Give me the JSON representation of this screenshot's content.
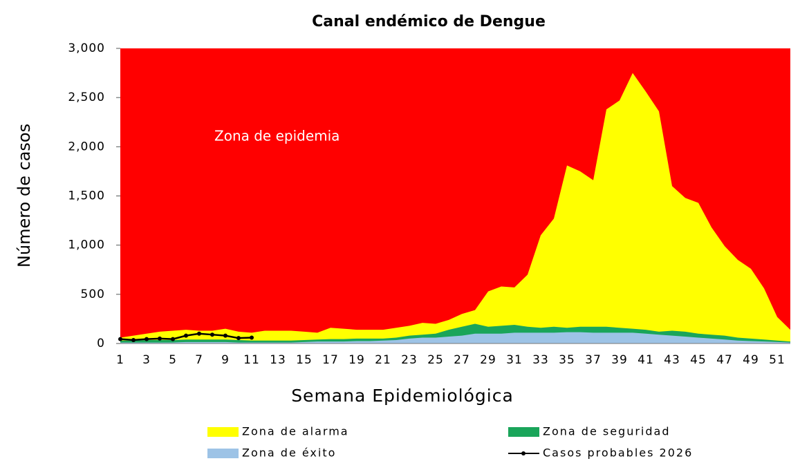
{
  "chart_data": {
    "type": "area",
    "title": "Canal endémico de Dengue",
    "x_label": "Semana Epidemiológica",
    "y_label": "Número de casos",
    "annotation": "Zona de epidemia",
    "background_color": "#ff0000",
    "categories": [
      1,
      null,
      3,
      null,
      5,
      null,
      7,
      null,
      9,
      null,
      11,
      null,
      13,
      null,
      15,
      null,
      17,
      null,
      19,
      null,
      21,
      null,
      23,
      null,
      25,
      null,
      27,
      null,
      29,
      null,
      31,
      null,
      33,
      null,
      35,
      null,
      37,
      null,
      39,
      null,
      41,
      null,
      43,
      null,
      45,
      null,
      47,
      null,
      49,
      null,
      51,
      null
    ],
    "ylim": [
      0,
      3000
    ],
    "yticks": [
      0,
      500,
      {
        "value": 1000,
        "label": "1,000"
      },
      {
        "value": 1500,
        "label": "1,500"
      },
      {
        "value": 2000,
        "label": "2,000"
      },
      {
        "value": 2500,
        "label": "2,500"
      },
      {
        "value": 3000,
        "label": "3,000"
      }
    ],
    "series": [
      {
        "name": "Zona de alarma",
        "color": "#ffff00",
        "type": "area",
        "values": [
          60,
          80,
          100,
          120,
          130,
          140,
          130,
          130,
          150,
          120,
          110,
          130,
          130,
          130,
          120,
          110,
          160,
          150,
          140,
          140,
          140,
          160,
          180,
          210,
          200,
          240,
          300,
          340,
          530,
          580,
          570,
          700,
          1100,
          1270,
          1810,
          1750,
          1660,
          2380,
          2470,
          2750,
          2560,
          2360,
          1600,
          1480,
          1430,
          1180,
          990,
          850,
          760,
          560,
          270,
          140
        ]
      },
      {
        "name": "Zona de seguridad",
        "color": "#1aa55a",
        "type": "area",
        "values": [
          30,
          30,
          35,
          35,
          35,
          40,
          40,
          40,
          40,
          35,
          30,
          30,
          30,
          30,
          35,
          40,
          45,
          45,
          50,
          50,
          50,
          60,
          80,
          90,
          100,
          140,
          170,
          200,
          170,
          180,
          190,
          170,
          160,
          170,
          160,
          170,
          170,
          170,
          160,
          150,
          140,
          120,
          130,
          120,
          100,
          90,
          80,
          60,
          50,
          40,
          30,
          20
        ]
      },
      {
        "name": "Zona de éxito",
        "color": "#9dc3e6",
        "type": "area",
        "values": [
          10,
          10,
          10,
          10,
          10,
          15,
          15,
          15,
          15,
          10,
          10,
          10,
          10,
          10,
          15,
          20,
          20,
          20,
          25,
          25,
          30,
          35,
          50,
          60,
          60,
          70,
          80,
          100,
          100,
          100,
          110,
          110,
          110,
          110,
          115,
          115,
          110,
          110,
          110,
          110,
          100,
          90,
          80,
          70,
          60,
          50,
          40,
          30,
          25,
          20,
          15,
          10
        ]
      },
      {
        "name": "Casos probables 2026",
        "color": "#000000",
        "type": "line",
        "values": [
          45,
          35,
          45,
          50,
          45,
          80,
          100,
          90,
          80,
          55,
          60,
          null,
          null,
          null,
          null,
          null,
          null,
          null,
          null,
          null,
          null,
          null,
          null,
          null,
          null,
          null,
          null,
          null,
          null,
          null,
          null,
          null,
          null,
          null,
          null,
          null,
          null,
          null,
          null,
          null,
          null,
          null,
          null,
          null,
          null,
          null,
          null,
          null,
          null,
          null,
          null,
          null
        ]
      }
    ]
  }
}
